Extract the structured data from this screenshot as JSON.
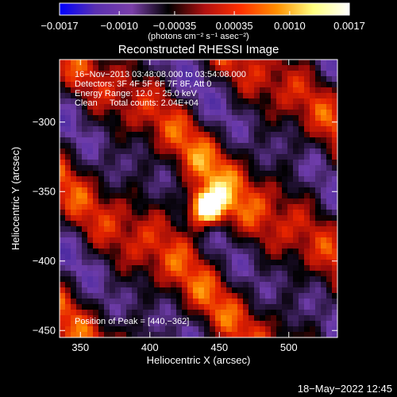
{
  "chart_data": {
    "type": "heatmap",
    "title": "Reconstructed RHESSI Image",
    "xlabel": "Heliocentric X (arcsec)",
    "ylabel": "Heliocentric Y (arcsec)",
    "xlim": [
      335,
      535
    ],
    "ylim": [
      -455,
      -255
    ],
    "x_ticks": [
      {
        "value": 350,
        "label": "350"
      },
      {
        "value": 400,
        "label": "400"
      },
      {
        "value": 450,
        "label": "450"
      },
      {
        "value": 500,
        "label": "500"
      }
    ],
    "y_ticks": [
      {
        "value": -300,
        "label": "−300"
      },
      {
        "value": -350,
        "label": "−350"
      },
      {
        "value": -400,
        "label": "−400"
      },
      {
        "value": -450,
        "label": "−450"
      }
    ],
    "colorbar": {
      "min": -0.0017,
      "max": 0.0017,
      "ticks": [
        {
          "value": -0.0017,
          "label": "−0.0017"
        },
        {
          "value": -0.001,
          "label": "−0.0010"
        },
        {
          "value": -0.00035,
          "label": "−0.00035"
        },
        {
          "value": 0.00035,
          "label": "0.00035"
        },
        {
          "value": 0.001,
          "label": "0.0010"
        },
        {
          "value": 0.0017,
          "label": "0.0017"
        }
      ],
      "unit_label": "(photons cm⁻² s⁻¹ asec⁻²)"
    },
    "peak": {
      "x": 440,
      "y": -362
    },
    "annotations": [
      "16−Nov−2013 03:48:08.000 to 03:54:08.000",
      "Detectors: 3F 4F 5F 6F 7F 8F, Att 0",
      "Energy Range: 12.0 − 25.0 keV",
      "Clean     Total counts: 2.04E+04"
    ],
    "peak_label": "Position of Peak = [440,−362]",
    "colors": {
      "background": "#000000",
      "colormap": [
        "#0000ff",
        "#5a30b0",
        "#7a3fa8",
        "#000000",
        "#b01010",
        "#ff3000",
        "#ff9000",
        "#ffff80",
        "#ffffff"
      ]
    }
  },
  "footer": {
    "date": "18−May−2022 12:45"
  }
}
